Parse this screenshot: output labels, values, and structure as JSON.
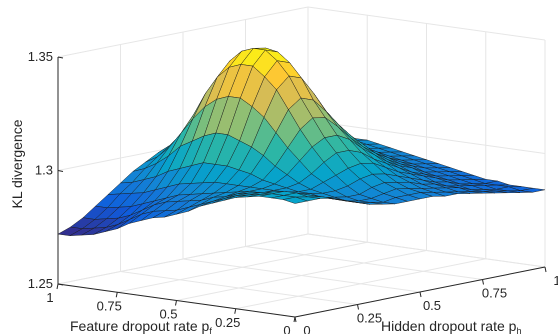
{
  "chart_data": {
    "type": "surface",
    "zlabel": "KL divergence",
    "xlabel": {
      "main": "Feature dropout rate p",
      "sub": "f"
    },
    "ylabel": {
      "main": "Hidden dropout rate p",
      "sub": "h"
    },
    "zlim": [
      1.25,
      1.35
    ],
    "zticks": [
      "1.25",
      "1.3",
      "1.35"
    ],
    "xticks": [
      "1",
      "0.75",
      "0.5",
      "0.25",
      "0"
    ],
    "yticks": [
      "0",
      "0.25",
      "0.5",
      "0.75",
      "1"
    ],
    "xlim": [
      0,
      1
    ],
    "ylim": [
      0,
      1
    ],
    "grid": true,
    "colormap": "parula",
    "parula": [
      "#352a87",
      "#0f5cdd",
      "#1481d6",
      "#06a4ca",
      "#2eb7a4",
      "#87bf77",
      "#d1bb59",
      "#fec832",
      "#f9fb0e"
    ],
    "surface": {
      "pf": [
        0,
        0.05,
        0.1,
        0.15,
        0.2,
        0.25,
        0.3,
        0.35,
        0.4,
        0.45,
        0.5,
        0.55,
        0.6,
        0.65,
        0.7,
        0.75,
        0.8,
        0.85,
        0.9,
        0.95,
        1.0
      ],
      "ph": [
        0,
        0.05,
        0.1,
        0.15,
        0.2,
        0.25,
        0.3,
        0.35,
        0.4,
        0.45,
        0.5,
        0.55,
        0.6,
        0.65,
        0.7,
        0.75,
        0.8,
        0.85,
        0.9,
        0.95,
        1.0
      ],
      "kl": [
        [
          1.3,
          1.3,
          1.3,
          1.299,
          1.297,
          1.295,
          1.293,
          1.292,
          1.291,
          1.291,
          1.291,
          1.291,
          1.29,
          1.29,
          1.289,
          1.288,
          1.287,
          1.286,
          1.285,
          1.284,
          1.284
        ],
        [
          1.301,
          1.301,
          1.3,
          1.299,
          1.297,
          1.295,
          1.293,
          1.292,
          1.291,
          1.292,
          1.292,
          1.292,
          1.291,
          1.29,
          1.289,
          1.288,
          1.287,
          1.286,
          1.285,
          1.284,
          1.284
        ],
        [
          1.301,
          1.301,
          1.301,
          1.299,
          1.297,
          1.295,
          1.293,
          1.292,
          1.292,
          1.293,
          1.294,
          1.293,
          1.292,
          1.291,
          1.29,
          1.289,
          1.287,
          1.286,
          1.285,
          1.285,
          1.284
        ],
        [
          1.301,
          1.301,
          1.301,
          1.299,
          1.297,
          1.295,
          1.294,
          1.293,
          1.293,
          1.295,
          1.296,
          1.295,
          1.294,
          1.292,
          1.291,
          1.289,
          1.288,
          1.287,
          1.286,
          1.285,
          1.284
        ],
        [
          1.3,
          1.3,
          1.3,
          1.299,
          1.297,
          1.296,
          1.295,
          1.295,
          1.296,
          1.298,
          1.299,
          1.298,
          1.296,
          1.294,
          1.292,
          1.29,
          1.289,
          1.287,
          1.286,
          1.285,
          1.285
        ],
        [
          1.299,
          1.299,
          1.299,
          1.298,
          1.297,
          1.296,
          1.296,
          1.298,
          1.3,
          1.302,
          1.303,
          1.302,
          1.299,
          1.296,
          1.294,
          1.292,
          1.29,
          1.288,
          1.287,
          1.286,
          1.285
        ],
        [
          1.297,
          1.298,
          1.298,
          1.297,
          1.297,
          1.297,
          1.298,
          1.301,
          1.305,
          1.308,
          1.308,
          1.306,
          1.302,
          1.299,
          1.296,
          1.293,
          1.291,
          1.289,
          1.288,
          1.287,
          1.286
        ],
        [
          1.295,
          1.296,
          1.297,
          1.297,
          1.297,
          1.298,
          1.301,
          1.306,
          1.311,
          1.314,
          1.314,
          1.311,
          1.306,
          1.302,
          1.298,
          1.295,
          1.293,
          1.29,
          1.289,
          1.288,
          1.287
        ],
        [
          1.293,
          1.294,
          1.295,
          1.296,
          1.297,
          1.299,
          1.304,
          1.311,
          1.318,
          1.322,
          1.321,
          1.316,
          1.31,
          1.305,
          1.301,
          1.297,
          1.294,
          1.292,
          1.29,
          1.289,
          1.288
        ],
        [
          1.29,
          1.292,
          1.294,
          1.295,
          1.297,
          1.301,
          1.308,
          1.317,
          1.326,
          1.33,
          1.328,
          1.322,
          1.315,
          1.309,
          1.304,
          1.299,
          1.296,
          1.293,
          1.291,
          1.29,
          1.289
        ],
        [
          1.288,
          1.29,
          1.292,
          1.294,
          1.297,
          1.302,
          1.311,
          1.323,
          1.334,
          1.339,
          1.337,
          1.329,
          1.32,
          1.313,
          1.306,
          1.301,
          1.297,
          1.294,
          1.292,
          1.291,
          1.29
        ],
        [
          1.286,
          1.288,
          1.291,
          1.293,
          1.297,
          1.303,
          1.313,
          1.327,
          1.339,
          1.345,
          1.343,
          1.334,
          1.324,
          1.316,
          1.309,
          1.303,
          1.299,
          1.296,
          1.293,
          1.292,
          1.291
        ],
        [
          1.285,
          1.287,
          1.29,
          1.292,
          1.296,
          1.303,
          1.315,
          1.33,
          1.343,
          1.349,
          1.347,
          1.338,
          1.327,
          1.318,
          1.31,
          1.304,
          1.3,
          1.297,
          1.294,
          1.293,
          1.292
        ],
        [
          1.283,
          1.286,
          1.289,
          1.291,
          1.295,
          1.303,
          1.315,
          1.33,
          1.343,
          1.349,
          1.348,
          1.339,
          1.329,
          1.319,
          1.311,
          1.305,
          1.301,
          1.298,
          1.295,
          1.294,
          1.293
        ],
        [
          1.281,
          1.284,
          1.287,
          1.289,
          1.294,
          1.301,
          1.313,
          1.328,
          1.341,
          1.347,
          1.346,
          1.338,
          1.328,
          1.319,
          1.311,
          1.306,
          1.302,
          1.299,
          1.296,
          1.295,
          1.294
        ],
        [
          1.278,
          1.281,
          1.284,
          1.287,
          1.292,
          1.299,
          1.31,
          1.324,
          1.336,
          1.342,
          1.341,
          1.334,
          1.325,
          1.317,
          1.311,
          1.306,
          1.302,
          1.299,
          1.297,
          1.296,
          1.295
        ],
        [
          1.276,
          1.278,
          1.281,
          1.285,
          1.29,
          1.297,
          1.307,
          1.318,
          1.328,
          1.333,
          1.333,
          1.328,
          1.321,
          1.315,
          1.309,
          1.305,
          1.302,
          1.299,
          1.297,
          1.296,
          1.295
        ],
        [
          1.274,
          1.276,
          1.279,
          1.283,
          1.288,
          1.294,
          1.302,
          1.311,
          1.318,
          1.322,
          1.322,
          1.319,
          1.315,
          1.311,
          1.307,
          1.303,
          1.301,
          1.299,
          1.297,
          1.296,
          1.295
        ],
        [
          1.273,
          1.275,
          1.278,
          1.282,
          1.287,
          1.292,
          1.298,
          1.304,
          1.309,
          1.312,
          1.313,
          1.311,
          1.309,
          1.307,
          1.304,
          1.302,
          1.3,
          1.298,
          1.297,
          1.296,
          1.295
        ],
        [
          1.272,
          1.274,
          1.277,
          1.281,
          1.286,
          1.29,
          1.295,
          1.299,
          1.303,
          1.305,
          1.306,
          1.306,
          1.305,
          1.304,
          1.302,
          1.3,
          1.299,
          1.297,
          1.296,
          1.296,
          1.295
        ],
        [
          1.272,
          1.274,
          1.277,
          1.281,
          1.285,
          1.289,
          1.293,
          1.296,
          1.299,
          1.301,
          1.302,
          1.302,
          1.302,
          1.301,
          1.3,
          1.299,
          1.298,
          1.297,
          1.296,
          1.295,
          1.295
        ]
      ]
    }
  }
}
